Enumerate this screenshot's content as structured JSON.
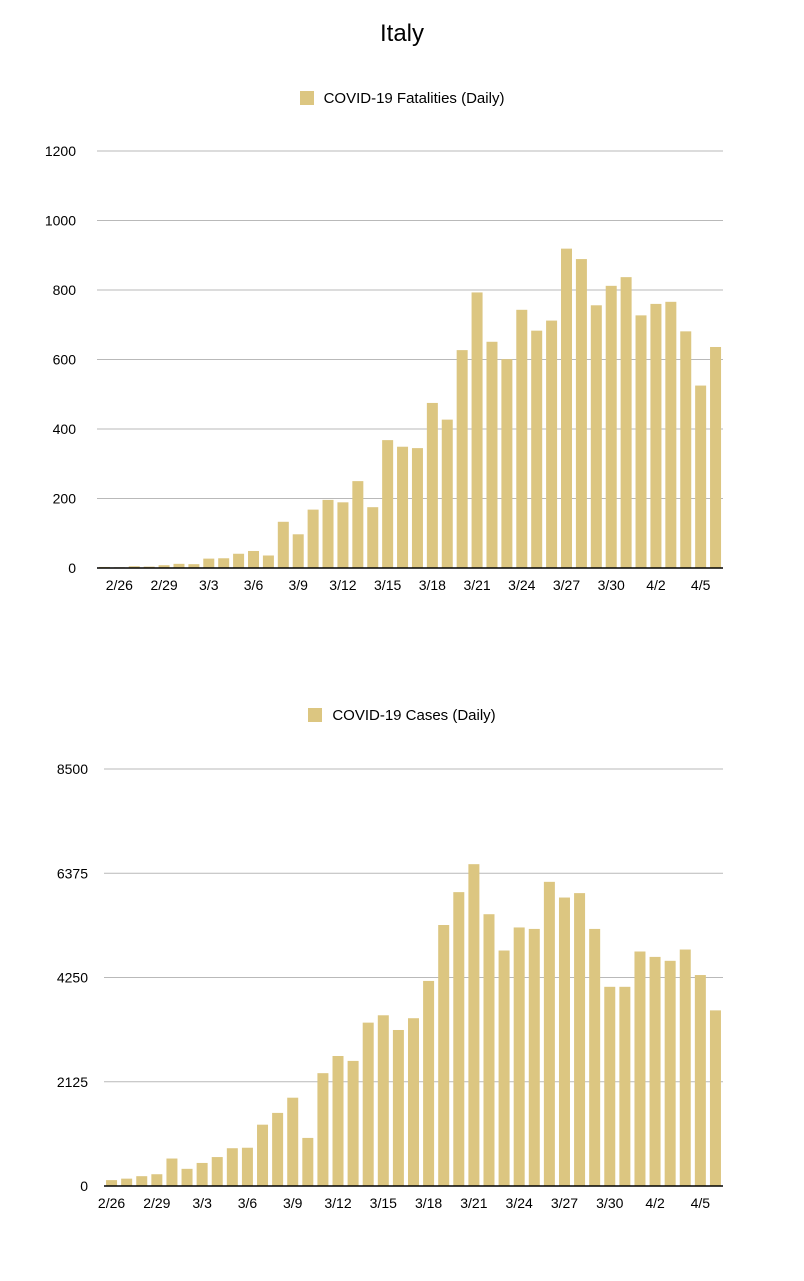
{
  "page": {
    "title": "Italy"
  },
  "colors": {
    "bar": "#dcc681",
    "grid": "#b9b9b9",
    "axis": "#000000"
  },
  "chart_data": [
    {
      "type": "bar",
      "legend": "COVID-19 Fatalities (Daily)",
      "legend_position": "top-center",
      "grid": true,
      "ylim": [
        0,
        1200
      ],
      "yticks": [
        "0",
        "200",
        "400",
        "600",
        "800",
        "1000",
        "1200"
      ],
      "xtick_labels": [
        "2/26",
        "2/29",
        "3/3",
        "3/6",
        "3/9",
        "3/12",
        "3/15",
        "3/18",
        "3/21",
        "3/24",
        "3/27",
        "3/30",
        "4/2",
        "4/5"
      ],
      "categories": [
        "2/25",
        "2/26",
        "2/27",
        "2/28",
        "2/29",
        "3/1",
        "3/2",
        "3/3",
        "3/4",
        "3/5",
        "3/6",
        "3/7",
        "3/8",
        "3/9",
        "3/10",
        "3/11",
        "3/12",
        "3/13",
        "3/14",
        "3/15",
        "3/16",
        "3/17",
        "3/18",
        "3/19",
        "3/20",
        "3/21",
        "3/22",
        "3/23",
        "3/24",
        "3/25",
        "3/26",
        "3/27",
        "3/28",
        "3/29",
        "3/30",
        "3/31",
        "4/1",
        "4/2",
        "4/3",
        "4/4",
        "4/5",
        "4/6"
      ],
      "values": [
        3,
        2,
        5,
        4,
        8,
        12,
        11,
        27,
        28,
        41,
        49,
        36,
        133,
        97,
        168,
        196,
        189,
        250,
        175,
        368,
        349,
        345,
        475,
        427,
        627,
        793,
        651,
        601,
        743,
        683,
        712,
        919,
        889,
        756,
        812,
        837,
        727,
        760,
        766,
        681,
        525,
        636
      ]
    },
    {
      "type": "bar",
      "legend": "COVID-19 Cases (Daily)",
      "legend_position": "top-center",
      "grid": true,
      "ylim": [
        0,
        8500
      ],
      "yticks": [
        "0",
        "2125",
        "4250",
        "6375",
        "8500"
      ],
      "xtick_labels": [
        "2/26",
        "2/29",
        "3/3",
        "3/6",
        "3/9",
        "3/12",
        "3/15",
        "3/18",
        "3/21",
        "3/24",
        "3/27",
        "3/30",
        "4/2",
        "4/5"
      ],
      "categories": [
        "2/26",
        "2/27",
        "2/28",
        "2/29",
        "3/1",
        "3/2",
        "3/3",
        "3/4",
        "3/5",
        "3/6",
        "3/7",
        "3/8",
        "3/9",
        "3/10",
        "3/11",
        "3/12",
        "3/13",
        "3/14",
        "3/15",
        "3/16",
        "3/17",
        "3/18",
        "3/19",
        "3/20",
        "3/21",
        "3/22",
        "3/23",
        "3/24",
        "3/25",
        "3/26",
        "3/27",
        "3/28",
        "3/29",
        "3/30",
        "3/31",
        "4/1",
        "4/2",
        "4/3",
        "4/4",
        "4/5",
        "4/6"
      ],
      "values": [
        120,
        150,
        200,
        240,
        560,
        350,
        470,
        590,
        770,
        780,
        1250,
        1490,
        1800,
        980,
        2300,
        2650,
        2550,
        3330,
        3480,
        3180,
        3420,
        4180,
        5320,
        5990,
        6560,
        5540,
        4800,
        5270,
        5240,
        6200,
        5880,
        5970,
        5240,
        4060,
        4060,
        4780,
        4670,
        4590,
        4820,
        4300,
        3580
      ]
    }
  ]
}
